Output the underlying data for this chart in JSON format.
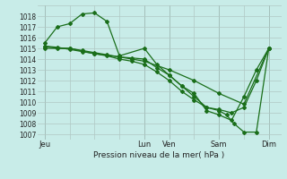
{
  "title": "Pression niveau de la mer( hPa )",
  "background_color": "#c8ece8",
  "grid_color": "#b0c8c4",
  "line_color": "#1a6e1a",
  "ylim": [
    1006.5,
    1019.0
  ],
  "yticks": [
    1007,
    1008,
    1009,
    1010,
    1011,
    1012,
    1013,
    1014,
    1015,
    1016,
    1017,
    1018
  ],
  "xtick_labels": [
    "Jeu",
    "",
    "",
    "",
    "Lun",
    "Ven",
    "",
    "Sam",
    "",
    "Dim"
  ],
  "xtick_positions": [
    0,
    1,
    2,
    3,
    4,
    5,
    6,
    7,
    8,
    9
  ],
  "day_labels": [
    "Jeu",
    "Lun",
    "Ven",
    "Sam",
    "Dim"
  ],
  "day_positions": [
    0,
    4,
    5,
    7,
    9
  ],
  "vlines": [
    0,
    4,
    5,
    7,
    9
  ],
  "series": [
    {
      "x": [
        0.0,
        0.5,
        1.0,
        1.5,
        2.0,
        2.5,
        3.0,
        3.5,
        4.0,
        5.0,
        6.0,
        7.0,
        8.0,
        9.0
      ],
      "y": [
        1015.2,
        1015.0,
        1015.0,
        1014.8,
        1014.6,
        1014.4,
        1014.2,
        1014.0,
        1013.8,
        1013.0,
        1012.0,
        1010.8,
        1009.8,
        1015.0
      ]
    },
    {
      "x": [
        0.0,
        0.5,
        1.0,
        1.5,
        2.0,
        2.5,
        3.0,
        4.0,
        4.5,
        5.0,
        5.5,
        6.0,
        6.5,
        7.0,
        7.3,
        7.6,
        8.0,
        8.5,
        9.0
      ],
      "y": [
        1015.5,
        1017.0,
        1017.3,
        1018.2,
        1018.3,
        1017.5,
        1014.3,
        1015.0,
        1013.5,
        1012.5,
        1011.5,
        1010.5,
        1009.5,
        1009.2,
        1008.8,
        1008.0,
        1007.2,
        1007.2,
        1015.0
      ]
    },
    {
      "x": [
        0.0,
        1.0,
        2.0,
        3.0,
        3.5,
        4.0,
        4.5,
        5.0,
        5.5,
        6.0,
        6.5,
        7.0,
        7.5,
        8.0,
        8.5,
        9.0
      ],
      "y": [
        1015.0,
        1015.0,
        1014.5,
        1014.2,
        1014.1,
        1014.0,
        1013.2,
        1012.5,
        1011.5,
        1010.8,
        1009.2,
        1008.8,
        1008.3,
        1010.5,
        1013.0,
        1015.0
      ]
    },
    {
      "x": [
        0.0,
        0.5,
        1.0,
        1.5,
        2.0,
        2.5,
        3.0,
        3.5,
        4.0,
        4.5,
        5.0,
        5.5,
        6.0,
        6.5,
        7.0,
        7.5,
        8.0,
        8.5,
        9.0
      ],
      "y": [
        1015.2,
        1015.1,
        1014.9,
        1014.7,
        1014.5,
        1014.3,
        1014.0,
        1013.8,
        1013.5,
        1012.8,
        1012.0,
        1011.0,
        1010.2,
        1009.5,
        1009.3,
        1009.0,
        1009.5,
        1012.0,
        1015.0
      ]
    }
  ],
  "marker": "D",
  "marker_size": 2.0,
  "linewidth": 0.9
}
